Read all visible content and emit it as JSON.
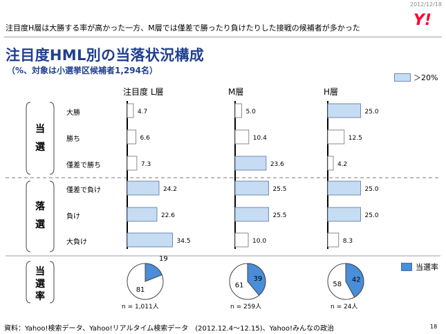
{
  "header": {
    "date": "2012/12/18",
    "logo_text": "Y!",
    "subheadline": "注目度H層は大勝する率が高かった一方、M層では僅差で勝ったり負けたりした接戦の候補者が多かった"
  },
  "chart_title": "注目度HML別の当落状況構成",
  "chart_subtitle": "（%、対象は小選挙区候補者1,294名）",
  "legend_highlight": "＞20%",
  "legend_win_rate": "当選率",
  "group_labels": {
    "win": [
      "当",
      "選"
    ],
    "lose": [
      "落",
      "選"
    ],
    "rate": [
      "当",
      "選",
      "率"
    ]
  },
  "footnote": "資料：Yahoo!検索データ、Yahoo!リアルタイム検索データ　(2012.12.4～12.15)、Yahoo!みんなの政治",
  "page_number": "18",
  "colors": {
    "highlight_fill": "#c6dcf2",
    "highlight_stroke": "#6f89b3",
    "plain_fill": "#ffffff",
    "plain_stroke": "#8a8a8a",
    "pie_win": "#4a8dd8",
    "title": "#1f3f8f"
  },
  "chart_data": [
    {
      "type": "bar",
      "orientation": "horizontal",
      "categories": [
        "大勝",
        "勝ち",
        "僅差で勝ち",
        "僅差で負け",
        "負け",
        "大負け"
      ],
      "series": [
        {
          "name": "注目度 L層",
          "values": [
            4.7,
            6.6,
            7.3,
            24.2,
            22.6,
            34.5
          ]
        },
        {
          "name": "M層",
          "values": [
            5.0,
            10.4,
            23.6,
            25.5,
            25.5,
            10.0
          ]
        },
        {
          "name": "H層",
          "values": [
            25.0,
            12.5,
            4.2,
            25.0,
            25.0,
            8.3
          ]
        }
      ],
      "highlight_threshold": 20
    },
    {
      "type": "pie",
      "series": [
        {
          "name": "注目度 L層",
          "win": 19,
          "lose": 81,
          "n": "n = 1,011人"
        },
        {
          "name": "M層",
          "win": 39,
          "lose": 61,
          "n": "n = 259人"
        },
        {
          "name": "H層",
          "win": 42,
          "lose": 58,
          "n": "n = 24人"
        }
      ]
    }
  ]
}
